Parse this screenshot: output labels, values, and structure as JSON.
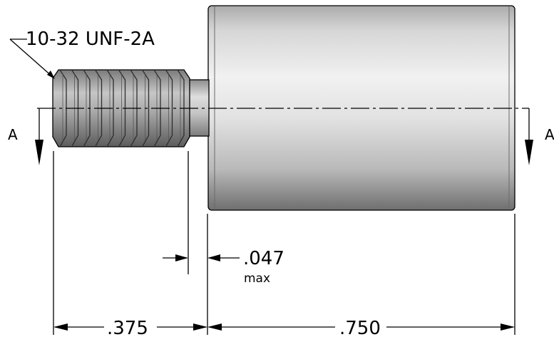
{
  "callouts": {
    "thread": "10-32 UNF-2A"
  },
  "section": {
    "left_label": "A",
    "right_label": "A"
  },
  "dimensions": {
    "undercut": ".047",
    "undercut_note": "max",
    "thread_length": ".375",
    "body_length": ".750"
  }
}
